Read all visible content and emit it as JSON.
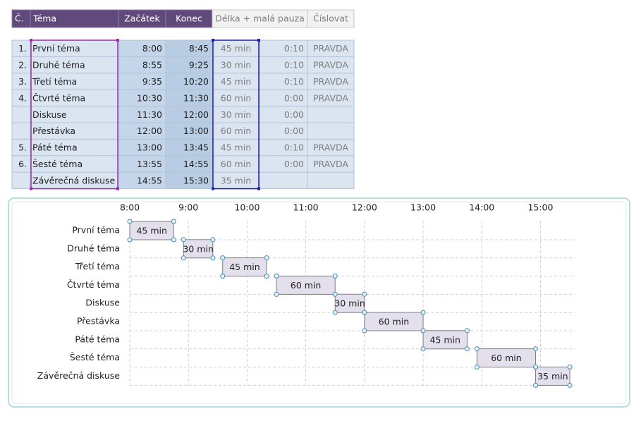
{
  "table": {
    "headers": [
      "Č.",
      "Téma",
      "Začátek",
      "Konec",
      "Délka + malá pauza",
      "Číslovat"
    ],
    "rows": [
      {
        "num": "1.",
        "topic": "První téma",
        "start": "8:00",
        "end": "8:45",
        "length": "45 min",
        "pause": "0:10",
        "flag": "PRAVDA"
      },
      {
        "num": "2.",
        "topic": "Druhé téma",
        "start": "8:55",
        "end": "9:25",
        "length": "30 min",
        "pause": "0:10",
        "flag": "PRAVDA"
      },
      {
        "num": "3.",
        "topic": "Třetí téma",
        "start": "9:35",
        "end": "10:20",
        "length": "45 min",
        "pause": "0:10",
        "flag": "PRAVDA"
      },
      {
        "num": "4.",
        "topic": "Čtvrté téma",
        "start": "10:30",
        "end": "11:30",
        "length": "60 min",
        "pause": "0:00",
        "flag": "PRAVDA"
      },
      {
        "topic": "Diskuse",
        "start": "11:30",
        "end": "12:00",
        "length": "30 min",
        "pause": "0:00"
      },
      {
        "topic": "Přestávka",
        "start": "12:00",
        "end": "13:00",
        "length": "60 min",
        "pause": "0:00"
      },
      {
        "num": "5.",
        "topic": "Páté téma",
        "start": "13:00",
        "end": "13:45",
        "length": "45 min",
        "pause": "0:10",
        "flag": "PRAVDA"
      },
      {
        "num": "6.",
        "topic": "Šesté téma",
        "start": "13:55",
        "end": "14:55",
        "length": "60 min",
        "pause": "0:00",
        "flag": "PRAVDA"
      },
      {
        "topic": "Závěrečná diskuse",
        "start": "14:55",
        "end": "15:30",
        "length": "35 min"
      }
    ]
  },
  "chart_data": {
    "type": "gantt",
    "categories": [
      "První téma",
      "Druhé téma",
      "Třetí téma",
      "Čtvrté téma",
      "Diskuse",
      "Přestávka",
      "Páté téma",
      "Šesté téma",
      "Závěrečná diskuse"
    ],
    "starts": [
      480,
      535,
      575,
      630,
      690,
      720,
      780,
      835,
      895
    ],
    "values": [
      45,
      30,
      45,
      60,
      30,
      60,
      45,
      60,
      35
    ],
    "value_labels": [
      "45 min",
      "30 min",
      "45 min",
      "60 min",
      "30 min",
      "60 min",
      "45 min",
      "60 min",
      "35 min"
    ],
    "xlim": [
      480,
      935
    ],
    "xticks": [
      {
        "value": 480,
        "label": "8:00"
      },
      {
        "value": 540,
        "label": "9:00"
      },
      {
        "value": 600,
        "label": "10:00"
      },
      {
        "value": 660,
        "label": "11:00"
      },
      {
        "value": 720,
        "label": "12:00"
      },
      {
        "value": 780,
        "label": "13:00"
      },
      {
        "value": 840,
        "label": "14:00"
      },
      {
        "value": 900,
        "label": "15:00"
      }
    ],
    "color": "#e4dfec",
    "grid": true
  }
}
